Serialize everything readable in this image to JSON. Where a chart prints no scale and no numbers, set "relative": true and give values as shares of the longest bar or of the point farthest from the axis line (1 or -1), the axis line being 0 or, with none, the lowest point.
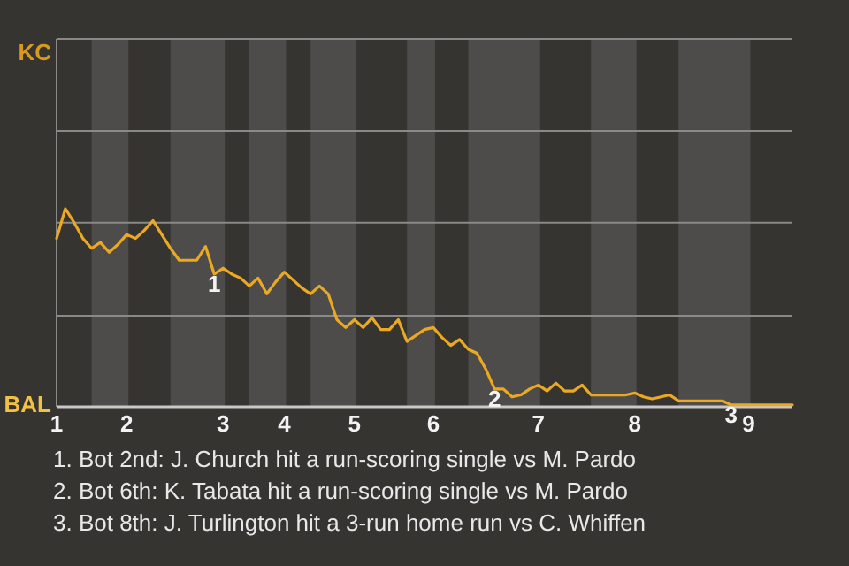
{
  "chart_data": {
    "type": "line",
    "relative": true,
    "categories": [
      "1",
      null,
      null,
      null,
      null,
      null,
      null,
      null,
      "2",
      null,
      null,
      null,
      null,
      null,
      null,
      null,
      null,
      null,
      null,
      "3",
      null,
      null,
      null,
      null,
      null,
      null,
      "4",
      null,
      null,
      null,
      null,
      null,
      null,
      null,
      "5",
      null,
      null,
      null,
      null,
      null,
      null,
      null,
      null,
      "6",
      null,
      null,
      null,
      null,
      null,
      null,
      null,
      null,
      null,
      null,
      null,
      "7",
      null,
      null,
      null,
      null,
      null,
      null,
      null,
      null,
      null,
      null,
      "8",
      null,
      null,
      null,
      null,
      null,
      null,
      null,
      null,
      null,
      null,
      null,
      null,
      "9",
      null,
      null,
      null,
      null,
      null
    ],
    "series": [
      {
        "color": "#eaa823",
        "values": [
          0.85,
          1,
          0.93,
          0.85,
          0.8,
          0.83,
          0.78,
          0.82,
          0.87,
          0.85,
          0.89,
          0.94,
          0.87,
          0.8,
          0.74,
          0.74,
          0.74,
          0.81,
          0.67,
          0.7,
          0.67,
          0.65,
          0.61,
          0.65,
          0.57,
          0.63,
          0.68,
          0.64,
          0.6,
          0.57,
          0.61,
          0.57,
          0.44,
          0.4,
          0.44,
          0.4,
          0.45,
          0.39,
          0.39,
          0.44,
          0.33,
          0.36,
          0.39,
          0.4,
          0.35,
          0.31,
          0.34,
          0.29,
          0.27,
          0.19,
          0.09,
          0.09,
          0.05,
          0.06,
          0.09,
          0.11,
          0.08,
          0.12,
          0.08,
          0.08,
          0.11,
          0.06,
          0.06,
          0.06,
          0.06,
          0.06,
          0.07,
          0.05,
          0.04,
          0.05,
          0.06,
          0.03,
          0.03,
          0.03,
          0.03,
          0.03,
          0.03,
          0.01,
          0.01,
          0.01,
          0.01,
          0.01,
          0.01,
          0.01,
          0.01
        ]
      }
    ],
    "ref_lines": [
      {
        "axis": "y",
        "value": 0.46,
        "color": "#8a8988"
      },
      {
        "axis": "y",
        "value": 0.93,
        "color": "#8a8988"
      }
    ],
    "annotations": [
      "KC",
      "BAL",
      {
        "text": "1",
        "y": 0.67
      },
      {
        "text": "2",
        "y": 0.09
      },
      {
        "text": "3",
        "y": 0.01
      },
      "1. Bot 2nd: J. Church hit a run-scoring single vs M. Pardo",
      "2. Bot 6th: K. Tabata hit a run-scoring single vs M. Pardo",
      "3. Bot 8th: J. Turlington hit a 3-run home run vs C. Whiffen"
    ]
  }
}
